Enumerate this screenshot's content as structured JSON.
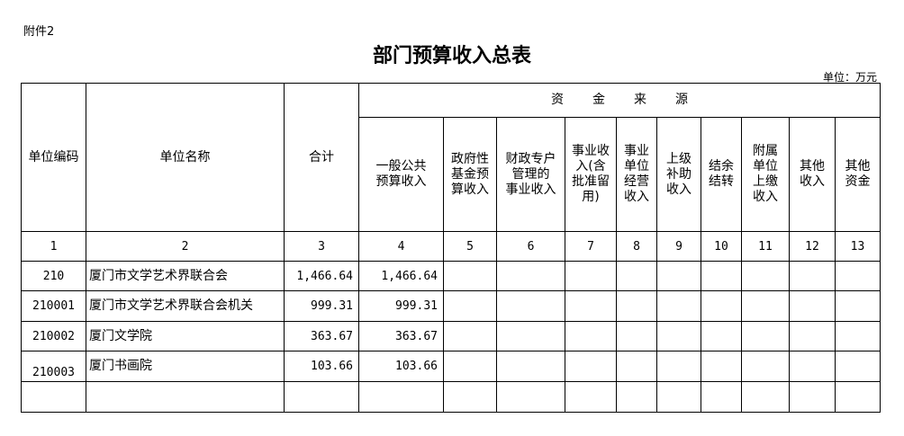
{
  "attachment": "附件2",
  "title": "部门预算收入总表",
  "unit": "单位：万元",
  "header": {
    "code": "单位编码",
    "name": "单位名称",
    "total": "合计",
    "source_group": "资金来源",
    "sources": [
      "一般公共\n预算收入",
      "政府性\n基金预\n算收入",
      "财政专户\n管理的\n事业收入",
      "事业收\n入(含\n批准留\n用)",
      "事业\n单位\n经营\n收入",
      "上级\n补助\n收入",
      "结余\n结转",
      "附属\n单位\n上缴\n收入",
      "其他\n收入",
      "其他\n资金"
    ]
  },
  "column_numbers": [
    "1",
    "2",
    "3",
    "4",
    "5",
    "6",
    "7",
    "8",
    "9",
    "10",
    "11",
    "12",
    "13"
  ],
  "rows": [
    {
      "code": "210",
      "name": "厦门市文学艺术界联合会",
      "total": "1,466.64",
      "general": "1,466.64"
    },
    {
      "code": "210001",
      "name": "厦门市文学艺术界联合会机关",
      "total": "999.31",
      "general": "999.31"
    },
    {
      "code": "210002",
      "name": "厦门文学院",
      "total": "363.67",
      "general": "363.67"
    },
    {
      "code": "210003",
      "name": "厦门书画院",
      "total": "103.66",
      "general": "103.66"
    },
    {
      "code": "",
      "name": "",
      "total": "",
      "general": ""
    }
  ]
}
